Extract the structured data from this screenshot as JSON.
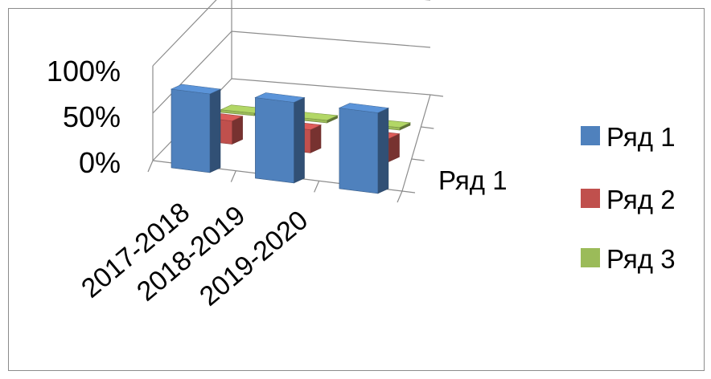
{
  "chart_data": {
    "type": "bar",
    "variant": "3d-column",
    "categories": [
      "2017-2018",
      "2018-2019",
      "2019-2020"
    ],
    "series": [
      {
        "name": "Ряд 1",
        "values": [
          0.78,
          0.8,
          0.8
        ],
        "color": "#4F81BD"
      },
      {
        "name": "Ряд 2",
        "values": [
          0.25,
          0.25,
          0.25
        ],
        "color": "#C0504D"
      },
      {
        "name": "Ряд 3",
        "values": [
          0.03,
          0.03,
          0.03
        ],
        "color": "#9BBB59"
      }
    ],
    "yticks": [
      "0%",
      "50%",
      "100%"
    ],
    "ylim": [
      0,
      1
    ],
    "depth_axis_label": "Ряд 1",
    "legend_position": "right",
    "grid": true
  }
}
